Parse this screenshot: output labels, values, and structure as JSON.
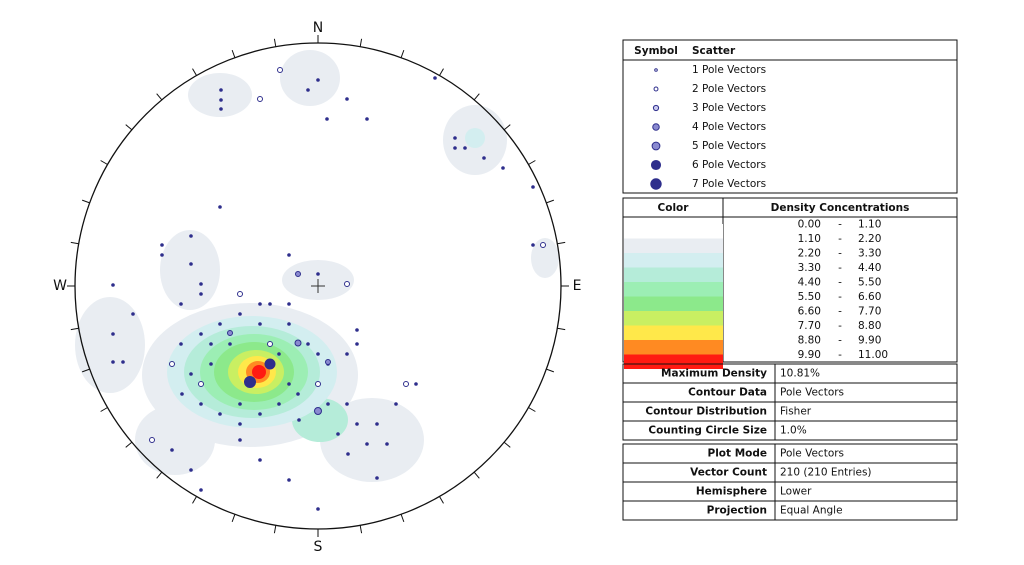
{
  "compass": {
    "north": "N",
    "east": "E",
    "south": "S",
    "west": "W"
  },
  "scatter_legend": {
    "header": [
      "Symbol",
      "Scatter"
    ],
    "rows": [
      "1 Pole Vectors",
      "2 Pole Vectors",
      "3 Pole Vectors",
      "4 Pole Vectors",
      "5 Pole Vectors",
      "6 Pole Vectors",
      "7 Pole Vectors"
    ],
    "color": "#2e2e8c"
  },
  "density_legend": {
    "header": [
      "Color",
      "Density Concentrations"
    ],
    "separator": "-",
    "rows": [
      {
        "from": "0.00",
        "to": "1.10",
        "color": "#ffffff"
      },
      {
        "from": "1.10",
        "to": "2.20",
        "color": "#e9edf2"
      },
      {
        "from": "2.20",
        "to": "3.30",
        "color": "#d3eef0"
      },
      {
        "from": "3.30",
        "to": "4.40",
        "color": "#b5ecd9"
      },
      {
        "from": "4.40",
        "to": "5.50",
        "color": "#9ceeb4"
      },
      {
        "from": "5.50",
        "to": "6.60",
        "color": "#8ce98b"
      },
      {
        "from": "6.60",
        "to": "7.70",
        "color": "#c9ef62"
      },
      {
        "from": "7.70",
        "to": "8.80",
        "color": "#ffe84a"
      },
      {
        "from": "8.80",
        "to": "9.90",
        "color": "#ff8a22"
      },
      {
        "from": "9.90",
        "to": "11.00",
        "color": "#ff1a12"
      }
    ]
  },
  "contour_info": [
    {
      "label": "Maximum Density",
      "value": "10.81%"
    },
    {
      "label": "Contour Data",
      "value": "Pole Vectors"
    },
    {
      "label": "Contour Distribution",
      "value": "Fisher"
    },
    {
      "label": "Counting Circle Size",
      "value": "1.0%"
    }
  ],
  "plot_info": [
    {
      "label": "Plot Mode",
      "value": "Pole Vectors"
    },
    {
      "label": "Vector Count",
      "value": "210 (210 Entries)"
    },
    {
      "label": "Hemisphere",
      "value": "Lower"
    },
    {
      "label": "Projection",
      "value": "Equal Angle"
    }
  ]
}
